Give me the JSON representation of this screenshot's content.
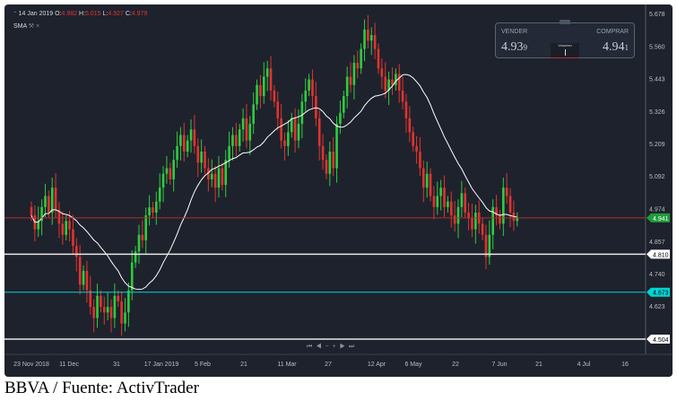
{
  "header": {
    "icon": "collapse-icon",
    "date": "14 Jan 2019",
    "o_label": "O:",
    "o": "4.982",
    "h_label": "H:",
    "h": "5.015",
    "l_label": "L:",
    "l": "4.927",
    "c_label": "C:",
    "c": "4.979"
  },
  "indicator": {
    "label": "SMA",
    "settings_icon": "wrench-icon",
    "close_icon": "close-icon"
  },
  "trade_widget": {
    "sell_label": "VENDER",
    "sell_price": "4.93",
    "sell_pip": "9",
    "buy_label": "COMPRAR",
    "buy_price": "4.94",
    "buy_pip": "1",
    "volume_label": "Volumen"
  },
  "navigation": {
    "buttons": [
      "first",
      "prev",
      "zoom-out",
      "zoom-in",
      "next",
      "last"
    ],
    "glyphs": [
      "⏮",
      "◀",
      "−",
      "+",
      "▶",
      "⏭"
    ]
  },
  "caption": "BBVA / Fuente: ActivTrader",
  "colors": {
    "up": "#2ecc40",
    "down": "#e0342f",
    "sma": "#ffffff",
    "current_line": "#b0312d",
    "cyan_line": "#00d4d4",
    "background": "#1e222d"
  },
  "chart_data": {
    "type": "candlestick",
    "ylim": [
      4.504,
      5.678
    ],
    "y_ticks": [
      "5.678",
      "5.560",
      "5.443",
      "5.326",
      "5.209",
      "5.092",
      "4.974",
      "4.857",
      "4.740",
      "4.623"
    ],
    "x_ticks": [
      "23 Nov 2018",
      "11 Dec",
      "31",
      "17 Jan 2019",
      "5 Feb",
      "21",
      "11 Mar",
      "27",
      "12 Apr",
      "6 May",
      "22",
      "7 Jun",
      "21",
      "4 Jul",
      "16"
    ],
    "closes": [
      4.95,
      4.9,
      4.93,
      4.98,
      5.02,
      4.96,
      5.05,
      4.97,
      4.92,
      4.88,
      4.93,
      4.9,
      4.84,
      4.8,
      4.7,
      4.75,
      4.68,
      4.62,
      4.58,
      4.66,
      4.62,
      4.6,
      4.62,
      4.58,
      4.66,
      4.64,
      4.56,
      4.6,
      4.68,
      4.78,
      4.82,
      4.88,
      4.86,
      4.95,
      4.979,
      4.96,
      5.0,
      5.05,
      5.1,
      5.12,
      5.08,
      5.15,
      5.2,
      5.24,
      5.18,
      5.22,
      5.26,
      5.2,
      5.14,
      5.18,
      5.12,
      5.08,
      5.1,
      5.05,
      5.12,
      5.06,
      5.15,
      5.2,
      5.24,
      5.2,
      5.26,
      5.3,
      5.22,
      5.28,
      5.35,
      5.42,
      5.38,
      5.45,
      5.48,
      5.4,
      5.36,
      5.3,
      5.22,
      5.2,
      5.25,
      5.3,
      5.22,
      5.28,
      5.36,
      5.4,
      5.44,
      5.38,
      5.3,
      5.2,
      5.15,
      5.1,
      5.18,
      5.12,
      5.28,
      5.32,
      5.38,
      5.45,
      5.42,
      5.5,
      5.48,
      5.55,
      5.62,
      5.58,
      5.6,
      5.55,
      5.48,
      5.45,
      5.4,
      5.44,
      5.42,
      5.46,
      5.4,
      5.36,
      5.3,
      5.25,
      5.2,
      5.18,
      5.12,
      5.05,
      5.1,
      5.02,
      4.98,
      5.02,
      5.05,
      4.98,
      5.0,
      4.95,
      4.92,
      4.98,
      5.03,
      4.96,
      4.94,
      4.9,
      4.96,
      4.92,
      4.88,
      4.8,
      4.88,
      4.98,
      4.95,
      4.92,
      5.05,
      5.02,
      4.96,
      4.93,
      4.941
    ],
    "sma": {
      "label": "SMA"
    },
    "price_lines": [
      {
        "value": "4.941",
        "kind": "current"
      },
      {
        "value": "4.810",
        "kind": "white"
      },
      {
        "value": "4.673",
        "kind": "cyan"
      },
      {
        "value": "4.504",
        "kind": "white"
      }
    ]
  }
}
